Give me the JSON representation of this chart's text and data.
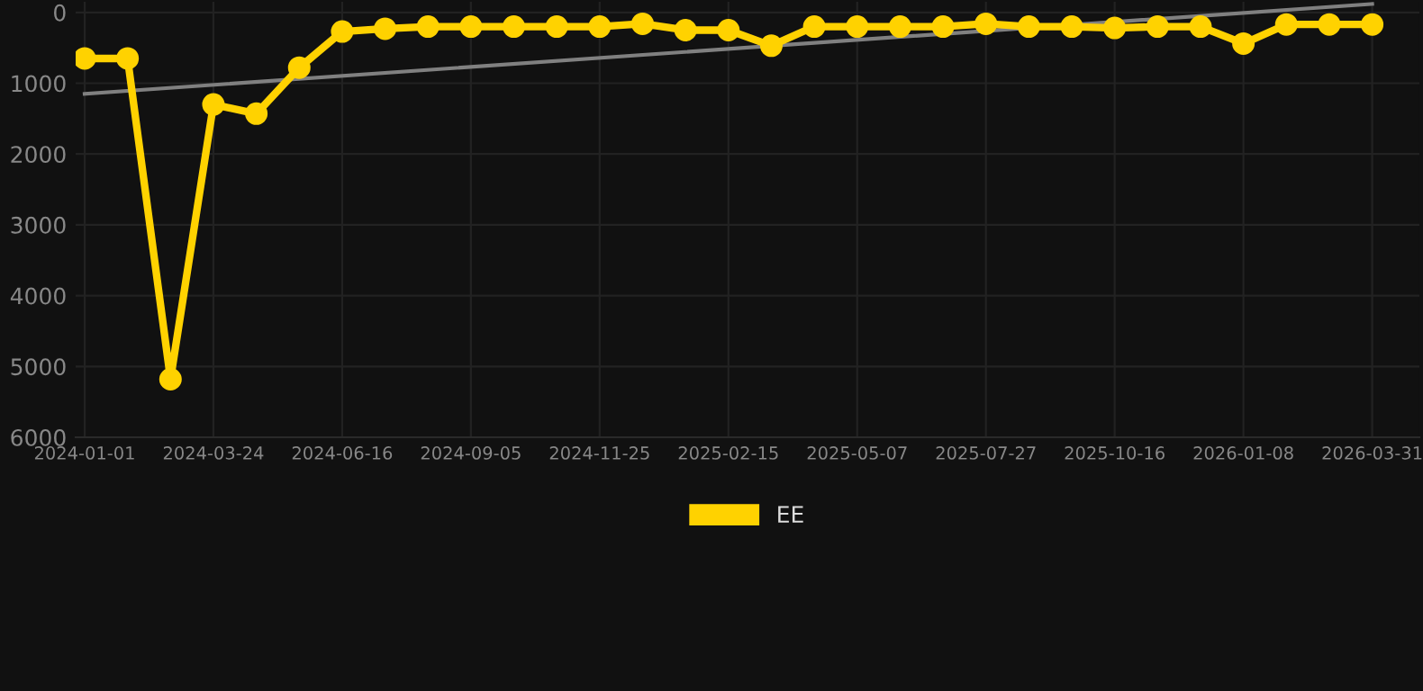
{
  "chart_data": {
    "type": "line",
    "categories": [
      "2024-01-01",
      null,
      null,
      "2024-03-24",
      null,
      null,
      "2024-06-16",
      null,
      null,
      "2024-09-05",
      null,
      null,
      "2024-11-25",
      null,
      null,
      "2025-02-15",
      null,
      null,
      "2025-05-07",
      null,
      null,
      "2025-07-27",
      null,
      null,
      "2025-10-16",
      null,
      null,
      "2026-01-08",
      null,
      null,
      "2026-03-31"
    ],
    "series": [
      {
        "name": "EE",
        "color": "#ffd200",
        "values": [
          650,
          650,
          5180,
          1300,
          1430,
          780,
          270,
          230,
          200,
          200,
          200,
          200,
          200,
          160,
          250,
          250,
          470,
          200,
          200,
          200,
          200,
          160,
          200,
          200,
          220,
          200,
          200,
          440,
          170,
          170,
          170
        ]
      },
      {
        "type": "line",
        "color": "#808080",
        "values": [
          1150,
          null,
          null,
          null,
          null,
          null,
          null,
          null,
          null,
          null,
          null,
          null,
          null,
          null,
          null,
          null,
          null,
          null,
          null,
          null,
          null,
          null,
          null,
          null,
          null,
          null,
          null,
          null,
          null,
          null,
          -120
        ],
        "marker": "none"
      }
    ],
    "ylim": [
      6000,
      -150
    ],
    "yticks": [
      0,
      1000,
      2000,
      3000,
      4000,
      5000,
      6000
    ],
    "grid": true,
    "legend": "bottom",
    "marker": "circle",
    "line_style": "solid"
  }
}
